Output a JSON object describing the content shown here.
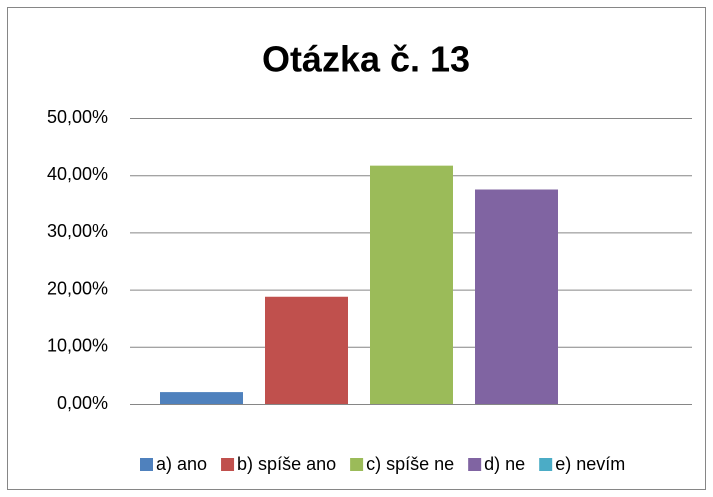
{
  "chart_data": {
    "type": "bar",
    "title": "Otázka č. 13",
    "categories": [
      null
    ],
    "series": [
      {
        "name": "a) ano",
        "color": "#4f81bd",
        "values": [
          2.08
        ]
      },
      {
        "name": "b) spíše ano",
        "color": "#c0504d",
        "values": [
          18.75
        ]
      },
      {
        "name": "c) spíše ne",
        "color": "#9bbb59",
        "values": [
          41.67
        ]
      },
      {
        "name": "d) ne",
        "color": "#8064a2",
        "values": [
          37.5
        ]
      },
      {
        "name": "e) nevím",
        "color": "#4bacc6",
        "values": [
          0
        ]
      }
    ],
    "ylim": [
      0,
      50
    ],
    "yticks": [
      {
        "value": 0,
        "label": "0,00%"
      },
      {
        "value": 10,
        "label": "10,00%"
      },
      {
        "value": 20,
        "label": "20,00%"
      },
      {
        "value": 30,
        "label": "30,00%"
      },
      {
        "value": 40,
        "label": "40,00%"
      },
      {
        "value": 50,
        "label": "50,00%"
      }
    ],
    "grid": true,
    "legend": "bottom"
  }
}
